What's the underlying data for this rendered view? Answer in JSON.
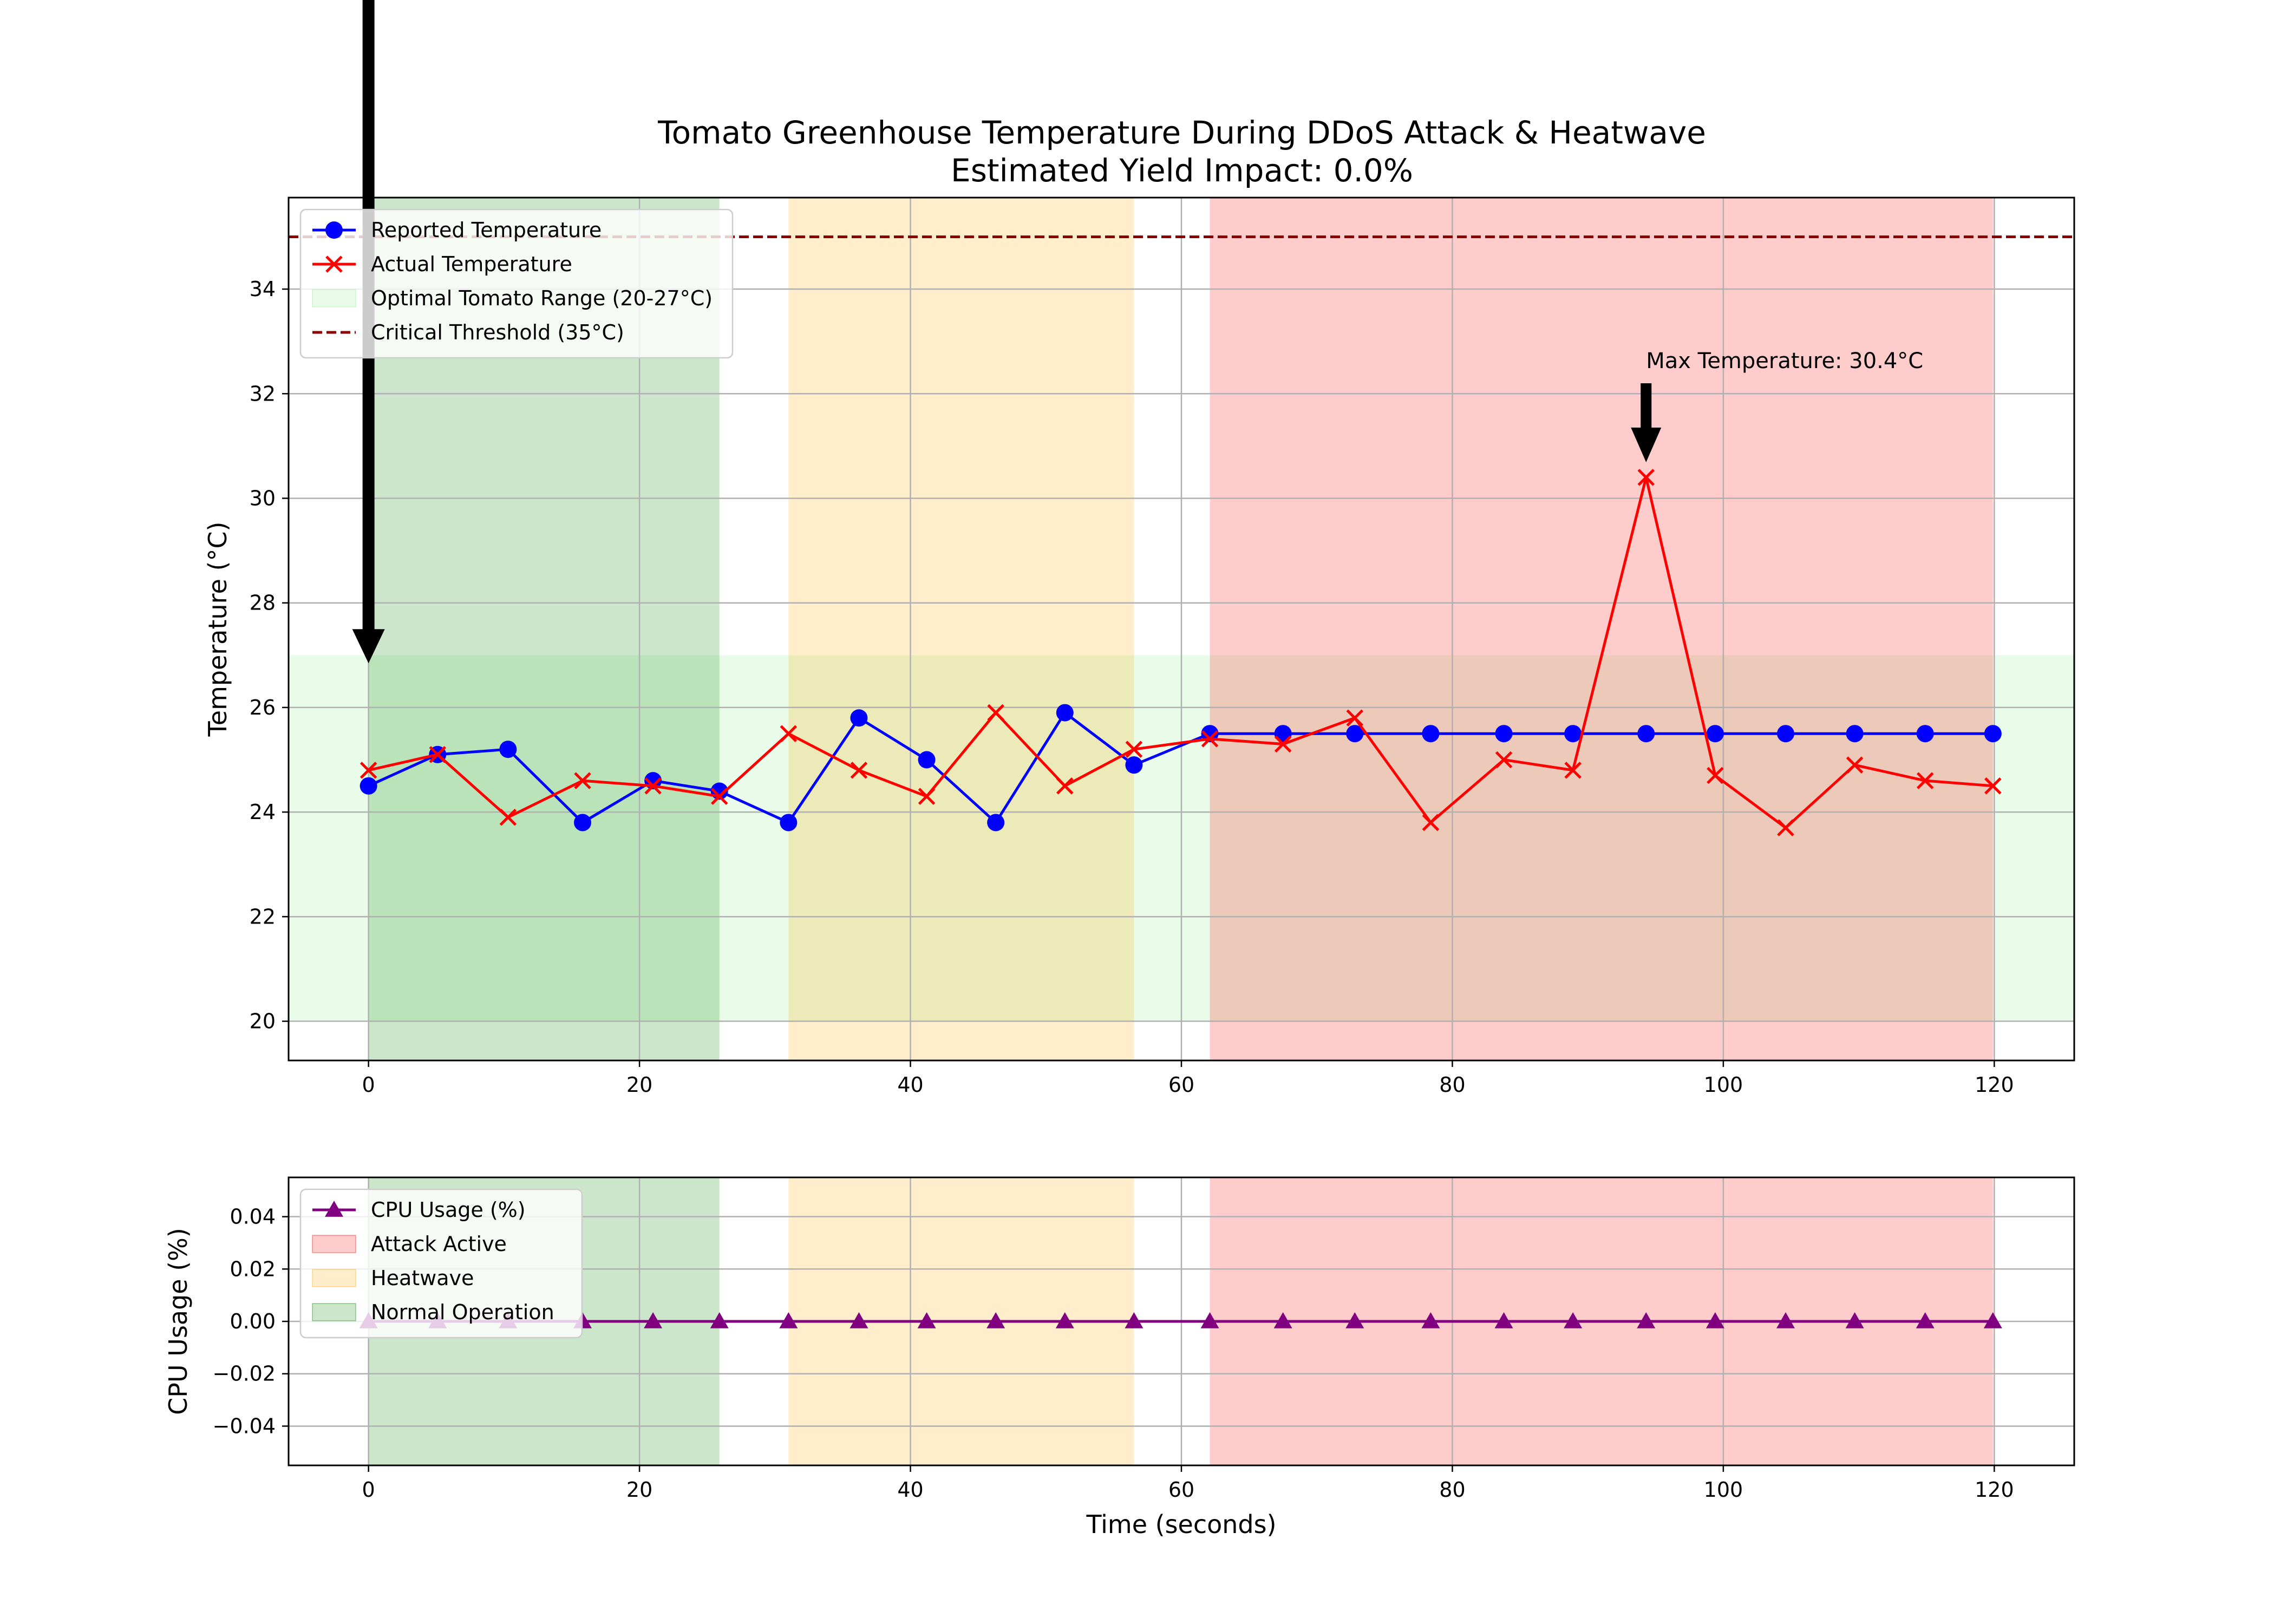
{
  "chart_data": [
    {
      "type": "line",
      "title": "Tomato Greenhouse Temperature During DDoS Attack & Heatwave",
      "subtitle": "Estimated Yield Impact: 0.0%",
      "xlabel": "",
      "ylabel": "Temperature (°C)",
      "xlim": [
        -5.9,
        125.9
      ],
      "ylim": [
        19.25,
        35.75
      ],
      "xticks": [
        0,
        20,
        40,
        60,
        80,
        100,
        120
      ],
      "yticks": [
        20,
        22,
        24,
        26,
        28,
        30,
        32,
        34
      ],
      "grid": true,
      "legend_position": "top-left",
      "x": [
        0,
        5.1,
        10.3,
        15.8,
        21.0,
        25.9,
        31.0,
        36.2,
        41.2,
        46.3,
        51.4,
        56.5,
        62.1,
        67.5,
        72.8,
        78.4,
        83.8,
        88.9,
        94.3,
        99.4,
        104.6,
        109.7,
        114.9,
        119.9
      ],
      "series": [
        {
          "name": "Reported Temperature",
          "color": "#0000ff",
          "marker": "circle",
          "values": [
            24.5,
            25.1,
            25.2,
            23.8,
            24.6,
            24.4,
            23.8,
            25.8,
            25.0,
            23.8,
            25.9,
            24.9,
            25.5,
            25.5,
            25.5,
            25.5,
            25.5,
            25.5,
            25.5,
            25.5,
            25.5,
            25.5,
            25.5,
            25.5
          ]
        },
        {
          "name": "Actual Temperature",
          "color": "#ff0000",
          "marker": "x",
          "values": [
            24.8,
            25.1,
            23.9,
            24.6,
            24.5,
            24.3,
            25.5,
            24.8,
            24.3,
            25.9,
            24.5,
            25.2,
            25.4,
            25.3,
            25.8,
            23.8,
            25.0,
            24.8,
            30.4,
            24.7,
            23.7,
            24.9,
            24.6,
            24.5
          ]
        }
      ],
      "bands": [
        {
          "name": "Optimal Tomato Range (20-27°C)",
          "axis": "y",
          "from": 20,
          "to": 27,
          "color": "#90ee90",
          "alpha": 0.2
        },
        {
          "name": "Normal Operation",
          "axis": "x",
          "from": 0,
          "to": 25.9,
          "color": "#008000",
          "alpha": 0.2
        },
        {
          "name": "Heatwave",
          "axis": "x",
          "from": 31.0,
          "to": 56.5,
          "color": "#ffa500",
          "alpha": 0.2
        },
        {
          "name": "Attack Active",
          "axis": "x",
          "from": 62.1,
          "to": 119.9,
          "color": "#ff0000",
          "alpha": 0.2
        }
      ],
      "threshold": {
        "name": "Critical Threshold (35°C)",
        "value": 35,
        "color": "#8b0000",
        "style": "dashed"
      },
      "annotations": [
        {
          "text": "Max Temperature: 30.4°C",
          "x": 94.3,
          "y": 30.4,
          "arrow": true
        },
        {
          "text": "",
          "x": 0,
          "y": 27,
          "arrow": true
        }
      ],
      "legend": [
        "Reported Temperature",
        "Actual Temperature",
        "Optimal Tomato Range (20-27°C)",
        "Critical Threshold (35°C)"
      ]
    },
    {
      "type": "line",
      "title": "",
      "xlabel": "Time (seconds)",
      "ylabel": "CPU Usage (%)",
      "xlim": [
        -5.9,
        125.9
      ],
      "ylim": [
        -0.055,
        0.055
      ],
      "xticks": [
        0,
        20,
        40,
        60,
        80,
        100,
        120
      ],
      "yticks": [
        0.04,
        0.02,
        0.0,
        -0.02,
        -0.04
      ],
      "yticklabels": [
        "0.04",
        "0.02",
        "0.00",
        "−0.02",
        "−0.04"
      ],
      "grid": true,
      "legend_position": "top-left",
      "x": [
        0,
        5.1,
        10.3,
        15.8,
        21.0,
        25.9,
        31.0,
        36.2,
        41.2,
        46.3,
        51.4,
        56.5,
        62.1,
        67.5,
        72.8,
        78.4,
        83.8,
        88.9,
        94.3,
        99.4,
        104.6,
        109.7,
        114.9,
        119.9
      ],
      "series": [
        {
          "name": "CPU Usage (%)",
          "color": "#800080",
          "marker": "triangle",
          "values": [
            0,
            0,
            0,
            0,
            0,
            0,
            0,
            0,
            0,
            0,
            0,
            0,
            0,
            0,
            0,
            0,
            0,
            0,
            0,
            0,
            0,
            0,
            0,
            0
          ]
        }
      ],
      "bands": [
        {
          "name": "Normal Operation",
          "axis": "x",
          "from": 0,
          "to": 25.9,
          "color": "#008000",
          "alpha": 0.2
        },
        {
          "name": "Heatwave",
          "axis": "x",
          "from": 31.0,
          "to": 56.5,
          "color": "#ffa500",
          "alpha": 0.2
        },
        {
          "name": "Attack Active",
          "axis": "x",
          "from": 62.1,
          "to": 119.9,
          "color": "#ff0000",
          "alpha": 0.2
        }
      ],
      "legend": [
        "CPU Usage (%)",
        "Attack Active",
        "Heatwave",
        "Normal Operation"
      ]
    }
  ]
}
